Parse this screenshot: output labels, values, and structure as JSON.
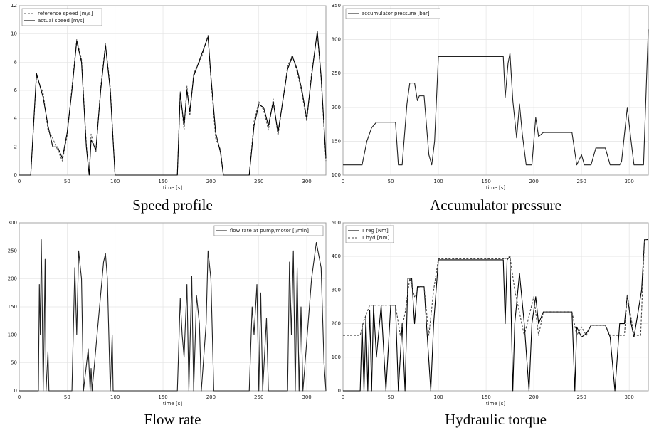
{
  "chart_data": [
    {
      "type": "line",
      "caption": "Speed profile",
      "xlabel": "time [s]",
      "xlim": [
        0,
        320
      ],
      "xticks": [
        0,
        50,
        100,
        150,
        200,
        250,
        300
      ],
      "ylim": [
        0,
        12
      ],
      "yticks": [
        0,
        2,
        4,
        6,
        8,
        10,
        12
      ],
      "grid": true,
      "legend": "upper left",
      "series": [
        {
          "name": "reference speed [m/s]",
          "color": "#555555",
          "linestyle": "dashed",
          "x": [
            0,
            12,
            18,
            25,
            30,
            35,
            40,
            45,
            50,
            55,
            60,
            65,
            70,
            73,
            75,
            80,
            85,
            90,
            95,
            100,
            165,
            168,
            172,
            175,
            178,
            182,
            190,
            197,
            200,
            205,
            210,
            213,
            240,
            245,
            250,
            255,
            260,
            265,
            270,
            280,
            285,
            290,
            295,
            300,
            305,
            311,
            315,
            320
          ],
          "values": [
            0,
            0,
            7,
            5.8,
            3.2,
            2.6,
            1.8,
            1,
            2.8,
            6.2,
            9.6,
            8.2,
            2.2,
            0,
            2.9,
            1.6,
            6.2,
            9.3,
            6.2,
            0,
            0,
            5.9,
            3.2,
            6.3,
            4.2,
            7.2,
            8.3,
            9.9,
            6.8,
            2.6,
            1.8,
            0,
            0,
            3.8,
            5.2,
            4.6,
            3.2,
            5.4,
            2.8,
            7.7,
            8.5,
            7.3,
            5.8,
            3.8,
            7.2,
            10.1,
            6.8,
            1
          ]
        },
        {
          "name": "actual speed [m/s]",
          "color": "#000000",
          "linestyle": "solid",
          "x": [
            0,
            12,
            18,
            25,
            30,
            35,
            40,
            45,
            50,
            55,
            60,
            65,
            70,
            73,
            75,
            80,
            85,
            90,
            95,
            100,
            165,
            168,
            172,
            175,
            178,
            182,
            190,
            197,
            200,
            205,
            210,
            213,
            240,
            245,
            250,
            255,
            260,
            265,
            270,
            280,
            285,
            290,
            295,
            300,
            305,
            311,
            315,
            320
          ],
          "values": [
            0,
            0,
            7.2,
            5.5,
            3.5,
            2,
            2,
            1.2,
            3,
            6,
            9.5,
            8,
            2,
            0,
            2.5,
            1.8,
            6,
            9.2,
            6,
            0,
            0,
            5.8,
            3.5,
            6,
            4.5,
            7,
            8.5,
            9.8,
            7,
            3,
            1.6,
            0,
            0,
            3.5,
            5,
            4.8,
            3.5,
            5.2,
            3,
            7.5,
            8.4,
            7.5,
            6,
            4,
            7,
            10.2,
            7,
            1.2
          ]
        }
      ]
    },
    {
      "type": "line",
      "caption": "Accumulator pressure",
      "xlabel": "time [s]",
      "xlim": [
        0,
        320
      ],
      "xticks": [
        0,
        50,
        100,
        150,
        200,
        250,
        300
      ],
      "ylim": [
        100,
        350
      ],
      "yticks": [
        100,
        150,
        200,
        250,
        300,
        350
      ],
      "grid": true,
      "legend": "upper left",
      "series": [
        {
          "name": "accumulator pressure [bar]",
          "color": "#222222",
          "linestyle": "solid",
          "x": [
            0,
            20,
            25,
            30,
            35,
            50,
            55,
            58,
            62,
            67,
            70,
            75,
            78,
            80,
            85,
            90,
            93,
            96,
            100,
            168,
            170,
            173,
            175,
            178,
            182,
            185,
            188,
            192,
            198,
            202,
            205,
            210,
            240,
            245,
            250,
            253,
            260,
            265,
            275,
            280,
            290,
            292,
            298,
            302,
            305,
            315,
            320
          ],
          "values": [
            115,
            115,
            150,
            170,
            178,
            178,
            178,
            115,
            115,
            205,
            236,
            236,
            210,
            217,
            217,
            130,
            115,
            150,
            275,
            275,
            215,
            265,
            280,
            210,
            155,
            205,
            160,
            115,
            115,
            185,
            157,
            163,
            163,
            115,
            130,
            115,
            115,
            140,
            140,
            115,
            115,
            120,
            200,
            150,
            115,
            115,
            315
          ]
        }
      ]
    },
    {
      "type": "line",
      "caption": "Flow rate",
      "xlabel": "time [s]",
      "xlim": [
        0,
        320
      ],
      "xticks": [
        0,
        50,
        100,
        150,
        200,
        250,
        300
      ],
      "ylim": [
        0,
        300
      ],
      "yticks": [
        0,
        50,
        100,
        150,
        200,
        250,
        300
      ],
      "grid": true,
      "legend": "upper right",
      "series": [
        {
          "name": "flow rate at pump/motor [l/min]",
          "color": "#222222",
          "linestyle": "solid",
          "x": [
            0,
            20,
            21,
            22,
            23,
            24,
            25,
            26,
            27,
            28,
            30,
            31,
            55,
            58,
            60,
            62,
            65,
            67,
            72,
            74,
            75,
            76,
            88,
            90,
            92,
            95,
            97,
            98,
            165,
            168,
            170,
            172,
            175,
            177,
            180,
            182,
            185,
            188,
            190,
            195,
            197,
            200,
            203,
            240,
            243,
            245,
            248,
            250,
            252,
            254,
            258,
            260,
            280,
            282,
            284,
            286,
            288,
            290,
            292,
            294,
            296,
            305,
            310,
            315,
            318,
            320
          ],
          "values": [
            0,
            0,
            190,
            100,
            270,
            150,
            0,
            100,
            235,
            0,
            70,
            0,
            0,
            220,
            100,
            250,
            200,
            0,
            75,
            0,
            40,
            0,
            230,
            245,
            200,
            0,
            100,
            0,
            0,
            165,
            100,
            60,
            190,
            0,
            205,
            0,
            170,
            120,
            0,
            120,
            250,
            200,
            0,
            0,
            150,
            100,
            190,
            0,
            175,
            0,
            130,
            0,
            0,
            230,
            100,
            250,
            0,
            220,
            0,
            150,
            0,
            200,
            265,
            220,
            50,
            0
          ]
        }
      ]
    },
    {
      "type": "line",
      "caption": "Hydraulic torque",
      "xlabel": "time [s]",
      "xlim": [
        0,
        320
      ],
      "xticks": [
        0,
        50,
        100,
        150,
        200,
        250,
        300
      ],
      "ylim": [
        0,
        500
      ],
      "yticks": [
        0,
        100,
        200,
        300,
        400,
        500
      ],
      "grid": true,
      "legend": "upper left",
      "series": [
        {
          "name": "T reg [Nm]",
          "color": "#000000",
          "linestyle": "solid",
          "x": [
            0,
            18,
            20,
            22,
            24,
            26,
            28,
            30,
            32,
            35,
            40,
            45,
            50,
            55,
            58,
            62,
            65,
            68,
            72,
            75,
            78,
            85,
            92,
            95,
            100,
            168,
            170,
            172,
            175,
            178,
            180,
            185,
            190,
            195,
            198,
            202,
            205,
            210,
            240,
            243,
            245,
            250,
            255,
            260,
            275,
            280,
            285,
            290,
            295,
            298,
            302,
            305,
            313,
            316,
            320
          ],
          "values": [
            0,
            0,
            200,
            0,
            220,
            0,
            240,
            0,
            255,
            100,
            255,
            0,
            255,
            255,
            0,
            200,
            0,
            335,
            335,
            200,
            310,
            310,
            0,
            200,
            390,
            390,
            200,
            390,
            400,
            0,
            200,
            350,
            200,
            0,
            200,
            280,
            200,
            235,
            235,
            0,
            190,
            160,
            170,
            195,
            195,
            160,
            0,
            200,
            200,
            285,
            200,
            160,
            300,
            450,
            450
          ]
        },
        {
          "name": "T hyd [Nm]",
          "color": "#444444",
          "linestyle": "dashed",
          "x": [
            0,
            18,
            22,
            28,
            55,
            60,
            65,
            70,
            75,
            80,
            85,
            90,
            95,
            100,
            170,
            175,
            180,
            190,
            200,
            205,
            210,
            240,
            245,
            250,
            255,
            260,
            275,
            280,
            295,
            298,
            305,
            312,
            316,
            320
          ],
          "values": [
            165,
            165,
            210,
            255,
            255,
            165,
            230,
            335,
            280,
            310,
            310,
            165,
            300,
            393,
            393,
            400,
            300,
            165,
            280,
            165,
            235,
            235,
            165,
            190,
            165,
            195,
            195,
            165,
            165,
            285,
            165,
            165,
            450,
            450
          ]
        }
      ]
    }
  ]
}
